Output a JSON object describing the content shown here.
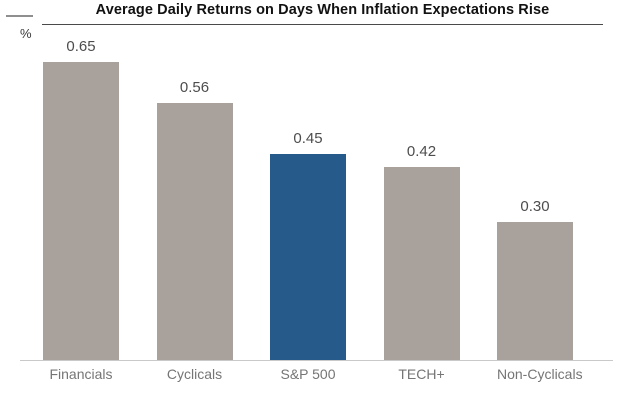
{
  "chart_data": {
    "type": "bar",
    "title": "Average Daily Returns on Days When Inflation Expectations Rise",
    "ylabel": "%",
    "xlabel": "",
    "categories": [
      "Financials",
      "Cyclicals",
      "S&P 500",
      "TECH+",
      "Non-Cyclicals"
    ],
    "values": [
      0.65,
      0.56,
      0.45,
      0.42,
      0.3
    ],
    "value_labels": [
      "0.65",
      "0.56",
      "0.45",
      "0.42",
      "0.30"
    ],
    "bar_colors": [
      "#a9a19b",
      "#a9a19b",
      "#265a8b",
      "#a9a19b",
      "#a9a19b"
    ],
    "highlight_category": "S&P 500",
    "ylim": [
      0,
      0.72
    ],
    "grid": false,
    "legend": false,
    "data_labels": true
  },
  "colors": {
    "bar_default": "#a9a19b",
    "bar_highlight": "#265a8b",
    "axis_line": "#c9c9c9",
    "value_label": "#4d4d4d",
    "category_label": "#757575",
    "title_text": "#111111",
    "title_rule": "#4a4a4a"
  }
}
